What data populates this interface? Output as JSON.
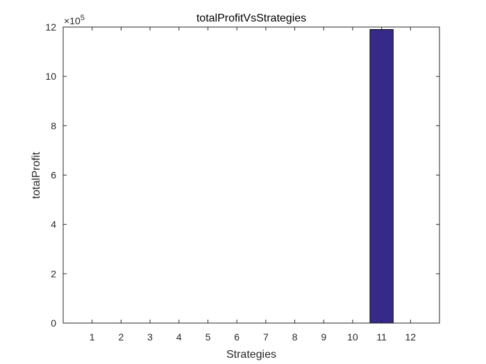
{
  "chart_data": {
    "type": "bar",
    "title": "totalProfitVsStrategies",
    "xlabel": "Strategies",
    "ylabel": "totalProfit",
    "categories": [
      "1",
      "2",
      "3",
      "4",
      "5",
      "6",
      "7",
      "8",
      "9",
      "10",
      "11",
      "12"
    ],
    "values": [
      0,
      0,
      0,
      0,
      0,
      0,
      0,
      0,
      0,
      0,
      1190000,
      0
    ],
    "ylim": [
      0,
      1200000
    ],
    "xlim": [
      0,
      13
    ],
    "y_ticks": [
      0,
      200000,
      400000,
      600000,
      800000,
      1000000,
      1200000
    ],
    "y_tick_labels": [
      "0",
      "2",
      "4",
      "6",
      "8",
      "10",
      "12"
    ],
    "y_exponent_label": "×10",
    "y_exponent_power": "5",
    "grid": false,
    "bar_color": "#352a87",
    "edge_color": "#000000"
  }
}
